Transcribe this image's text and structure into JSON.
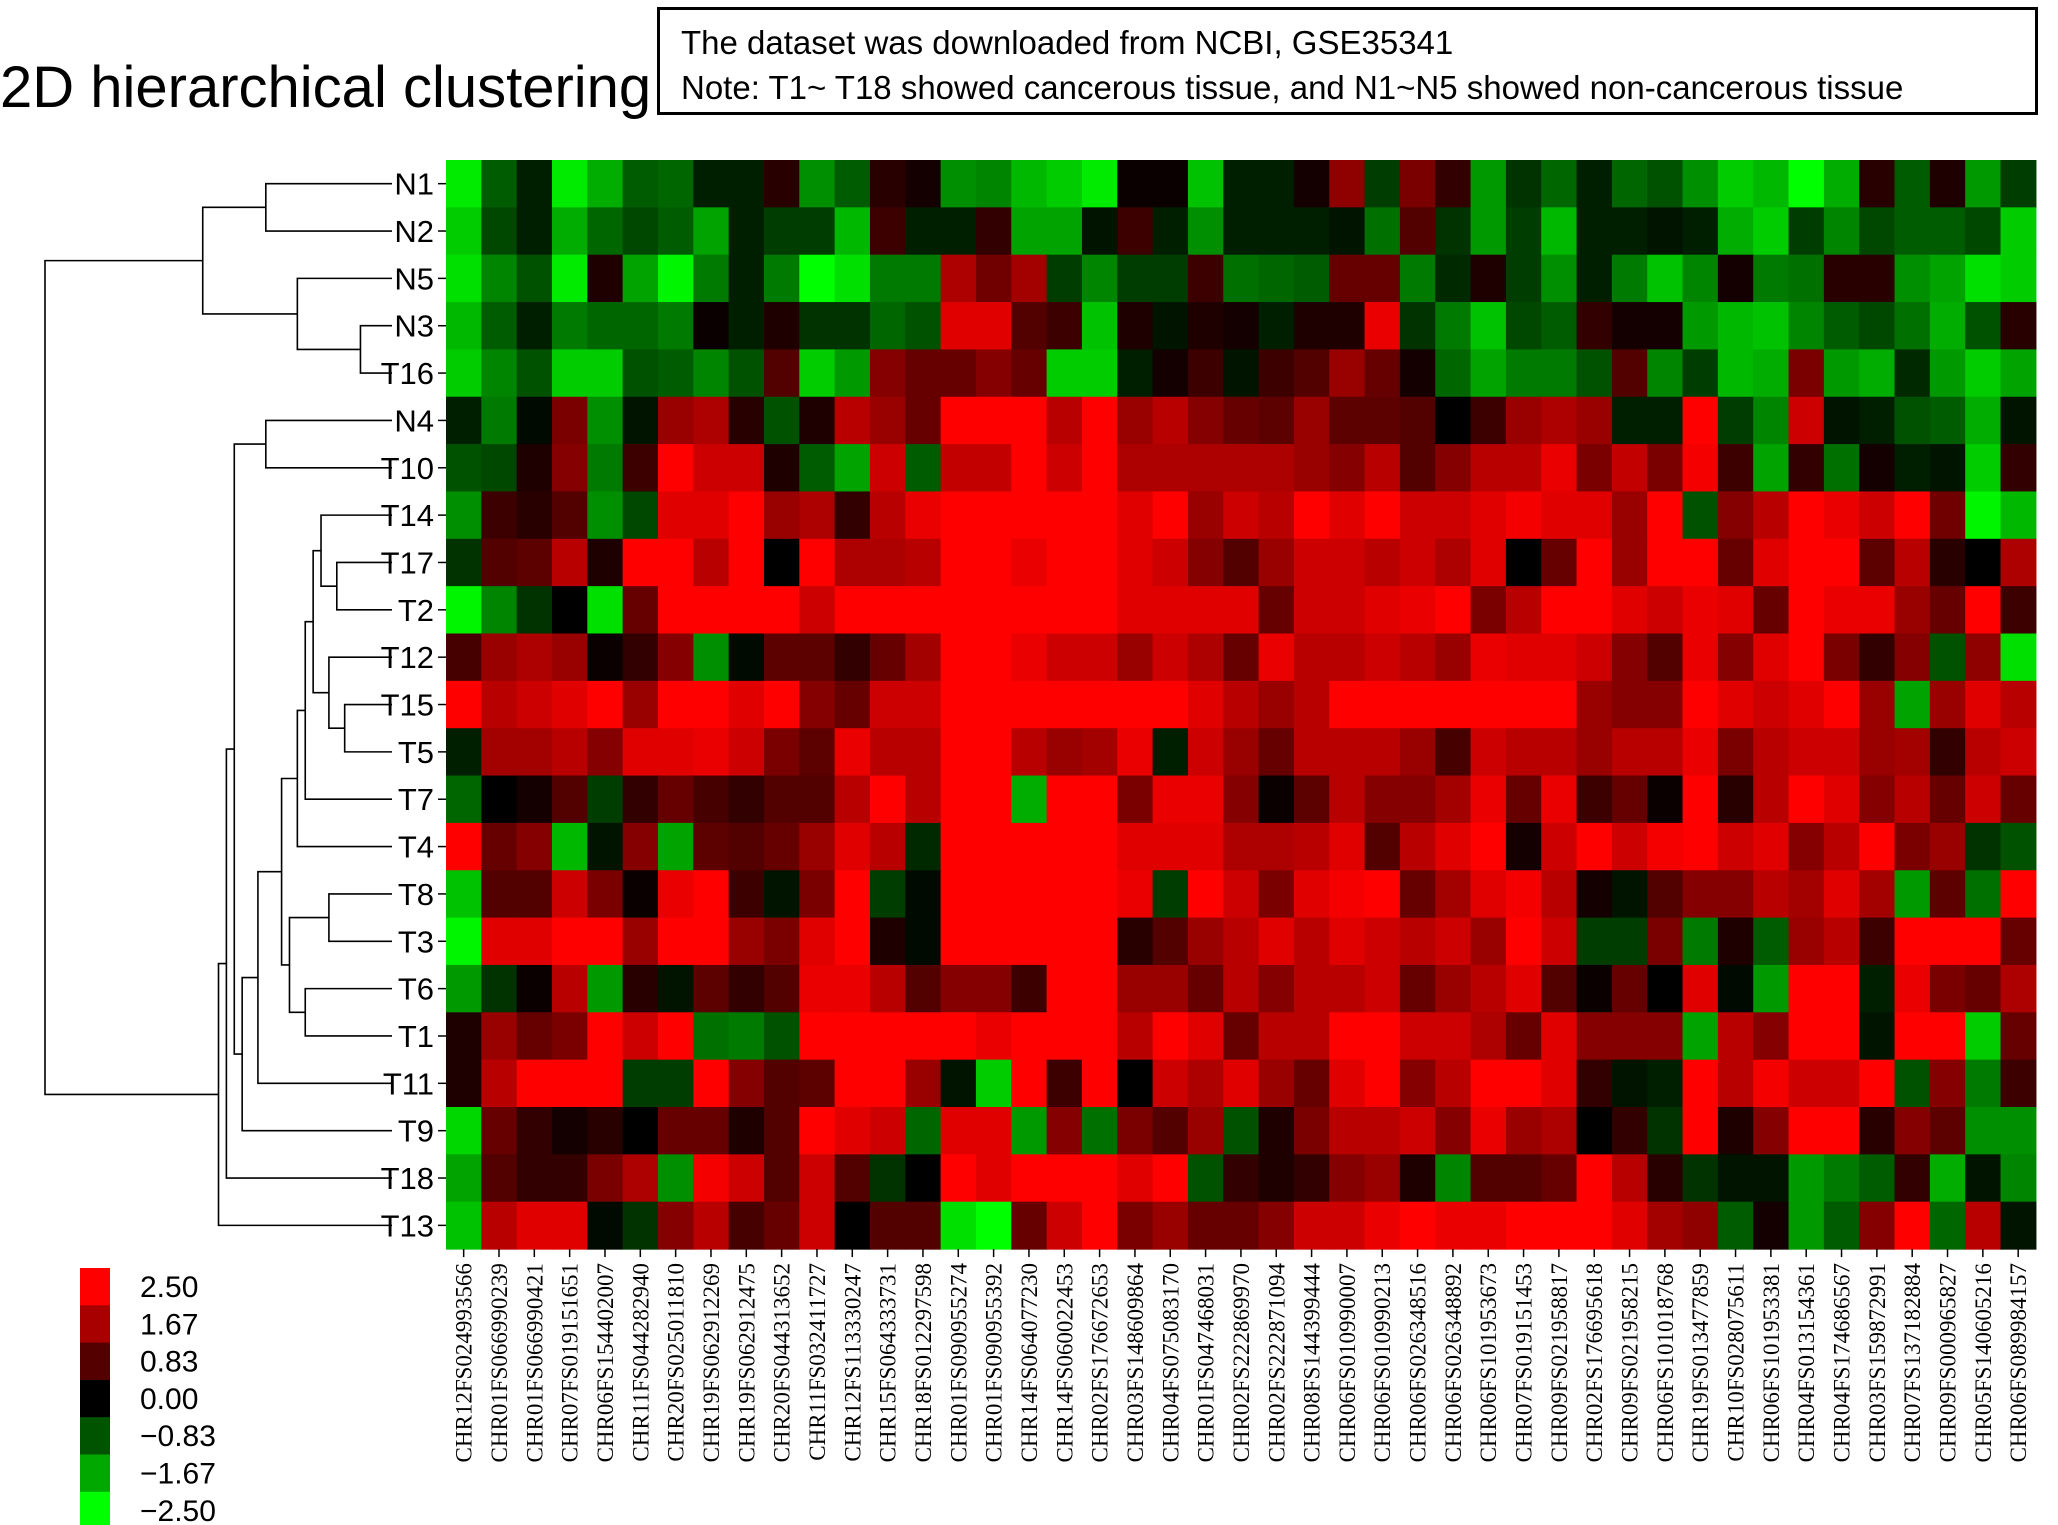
{
  "chart_data": {
    "type": "heatmap",
    "title": "2D hierarchical clustering",
    "note_lines": [
      "The dataset was downloaded from NCBI, GSE35341",
      "Note: T1~ T18 showed cancerous tissue, and N1~N5 showed non-cancerous tissue"
    ],
    "rows": [
      "N1",
      "N2",
      "N5",
      "N3",
      "T16",
      "N4",
      "T10",
      "T14",
      "T17",
      "T2",
      "T12",
      "T15",
      "T5",
      "T7",
      "T4",
      "T8",
      "T3",
      "T6",
      "T1",
      "T11",
      "T9",
      "T18",
      "T13"
    ],
    "columns": [
      "CHR12FS024993566",
      "CHR01FS066990239",
      "CHR01FS066990421",
      "CHR07FS019151651",
      "CHR06FS154402007",
      "CHR11FS044282940",
      "CHR20FS025011810",
      "CHR19FS062912269",
      "CHR19FS062912475",
      "CHR20FS044313652",
      "CHR11FS032411727",
      "CHR12FS113330247",
      "CHR15FS064333731",
      "CHR18FS012297598",
      "CHR01FS090955274",
      "CHR01FS090955392",
      "CHR14FS064077230",
      "CHR14FS060022453",
      "CHR02FS176672653",
      "CHR03FS148609864",
      "CHR04FS075083170",
      "CHR01FS047468031",
      "CHR02FS222869970",
      "CHR02FS222871094",
      "CHR08FS144399444",
      "CHR06FS010990007",
      "CHR06FS010990213",
      "CHR06FS026348516",
      "CHR06FS026348892",
      "CHR06FS101953673",
      "CHR07FS019151453",
      "CHR09FS021958817",
      "CHR02FS176695618",
      "CHR09FS021958215",
      "CHR06FS101018768",
      "CHR19FS013477859",
      "CHR10FS028075611",
      "CHR06FS101953381",
      "CHR04FS013154361",
      "CHR04FS174686567",
      "CHR03FS159872991",
      "CHR07FS137182884",
      "CHR09FS000965827",
      "CHR05FS140605216",
      "CHR06FS089984157"
    ],
    "values": [
      [
        -2.3,
        -0.9,
        -0.3,
        -2.3,
        -1.7,
        -0.9,
        -1.0,
        -0.3,
        -0.3,
        0.4,
        -1.4,
        -0.9,
        0.4,
        0.2,
        -1.4,
        -1.3,
        -1.8,
        -2.0,
        -2.3,
        0.1,
        0.1,
        -1.9,
        -0.3,
        -0.3,
        0.2,
        1.4,
        -0.6,
        1.2,
        0.5,
        -1.5,
        -0.5,
        -1.0,
        -0.3,
        -1.0,
        -0.8,
        -1.4,
        -2.0,
        -1.8,
        -2.5,
        -1.7,
        0.4,
        -0.9,
        0.3,
        -1.5,
        -0.6
      ],
      [
        -2.0,
        -0.7,
        -0.3,
        -1.7,
        -1.0,
        -0.7,
        -0.9,
        -1.6,
        -0.3,
        -0.6,
        -0.6,
        -1.8,
        0.6,
        -0.3,
        -0.3,
        0.5,
        -1.6,
        -1.6,
        -0.2,
        0.6,
        -0.3,
        -1.4,
        -0.3,
        -0.3,
        -0.3,
        -0.2,
        -1.1,
        0.8,
        -0.5,
        -1.5,
        -0.6,
        -1.8,
        -0.3,
        -0.3,
        -0.2,
        -0.3,
        -1.7,
        -2.0,
        -0.6,
        -1.3,
        -0.7,
        -0.9,
        -0.9,
        -0.7,
        -2.0
      ],
      [
        -2.2,
        -1.3,
        -0.8,
        -2.3,
        0.3,
        -1.6,
        -2.4,
        -1.2,
        -0.3,
        -1.2,
        -2.5,
        -2.2,
        -1.2,
        -1.2,
        1.7,
        1.1,
        1.6,
        -0.6,
        -1.3,
        -0.6,
        -0.6,
        0.6,
        -1.1,
        -1.0,
        -0.9,
        1.0,
        1.0,
        -1.2,
        -0.4,
        0.3,
        -0.6,
        -1.4,
        -0.3,
        -1.2,
        -1.9,
        -1.3,
        0.2,
        -1.2,
        -1.1,
        0.4,
        0.4,
        -1.4,
        -1.6,
        -2.2,
        -2.0
      ],
      [
        -1.8,
        -0.9,
        -0.3,
        -1.2,
        -1.0,
        -1.0,
        -1.2,
        0.1,
        -0.3,
        0.3,
        -0.5,
        -0.5,
        -1.0,
        -0.8,
        2.2,
        2.2,
        0.8,
        0.6,
        -1.9,
        0.3,
        -0.2,
        0.3,
        0.2,
        -0.3,
        0.3,
        0.3,
        2.3,
        -0.5,
        -1.2,
        -1.9,
        -0.7,
        -0.9,
        0.5,
        0.2,
        0.2,
        -1.5,
        -1.8,
        -1.9,
        -1.3,
        -0.9,
        -0.7,
        -1.1,
        -1.7,
        -0.8,
        0.4
      ],
      [
        -2.0,
        -1.3,
        -0.8,
        -2.0,
        -2.0,
        -0.8,
        -0.9,
        -1.3,
        -0.8,
        0.8,
        -2.0,
        -1.5,
        1.3,
        1.0,
        1.0,
        1.3,
        1.0,
        -2.0,
        -2.0,
        -0.3,
        0.2,
        0.6,
        -0.2,
        0.6,
        0.8,
        1.5,
        1.0,
        0.2,
        -1.0,
        -1.6,
        -1.2,
        -1.2,
        -0.8,
        0.8,
        -1.3,
        -0.6,
        -1.8,
        -1.7,
        1.2,
        -1.5,
        -1.7,
        -0.4,
        -1.5,
        -2.0,
        -1.6
      ],
      [
        -0.3,
        -1.2,
        -0.1,
        1.2,
        -1.4,
        -0.2,
        1.5,
        1.7,
        0.4,
        -0.8,
        0.3,
        1.8,
        1.5,
        1.0,
        2.5,
        2.5,
        2.5,
        1.8,
        2.5,
        1.5,
        1.8,
        1.3,
        1.0,
        0.9,
        1.5,
        0.9,
        0.9,
        0.8,
        0.0,
        0.6,
        1.5,
        1.7,
        1.5,
        -0.3,
        -0.3,
        2.5,
        -0.6,
        -1.3,
        2.0,
        -0.2,
        -0.3,
        -0.8,
        -0.9,
        -1.7,
        -0.2
      ],
      [
        -0.8,
        -0.7,
        0.3,
        1.3,
        -1.2,
        0.6,
        2.5,
        2.0,
        2.0,
        0.3,
        -0.9,
        -1.6,
        2.0,
        -0.9,
        1.9,
        1.9,
        2.5,
        2.0,
        2.5,
        1.7,
        1.7,
        1.7,
        1.7,
        1.7,
        1.5,
        1.3,
        1.8,
        0.8,
        1.3,
        1.8,
        1.8,
        2.3,
        1.2,
        1.9,
        1.2,
        2.4,
        0.6,
        -1.6,
        0.5,
        -1.1,
        0.2,
        -0.3,
        -0.2,
        -2.0,
        0.5
      ],
      [
        -1.4,
        0.6,
        0.4,
        0.8,
        -1.4,
        -0.7,
        2.2,
        2.2,
        2.5,
        1.5,
        1.7,
        0.5,
        1.8,
        2.3,
        2.5,
        2.5,
        2.5,
        2.5,
        2.5,
        2.2,
        2.5,
        1.5,
        2.0,
        1.8,
        2.5,
        2.2,
        2.5,
        2.0,
        2.0,
        2.2,
        2.4,
        2.2,
        2.2,
        1.5,
        2.5,
        -0.8,
        1.3,
        1.8,
        2.5,
        2.3,
        2.0,
        2.5,
        1.1,
        -2.4,
        -1.8
      ],
      [
        -0.5,
        0.8,
        0.9,
        1.8,
        0.3,
        2.5,
        2.5,
        1.8,
        2.5,
        0.0,
        2.5,
        1.7,
        1.7,
        1.8,
        2.5,
        2.5,
        2.3,
        2.5,
        2.5,
        2.2,
        2.0,
        1.3,
        0.8,
        1.5,
        2.0,
        2.0,
        1.8,
        2.0,
        1.7,
        2.2,
        0.0,
        1.0,
        2.5,
        1.5,
        2.5,
        2.5,
        1.0,
        2.2,
        2.5,
        2.5,
        0.9,
        1.8,
        0.4,
        0.0,
        1.7
      ],
      [
        -2.4,
        -1.3,
        -0.5,
        0.0,
        -2.2,
        1.0,
        2.5,
        2.5,
        2.5,
        2.5,
        2.0,
        2.5,
        2.5,
        2.5,
        2.5,
        2.5,
        2.5,
        2.5,
        2.5,
        2.2,
        2.2,
        2.2,
        2.2,
        1.0,
        2.0,
        2.0,
        2.2,
        2.3,
        2.5,
        1.2,
        1.8,
        2.5,
        2.5,
        2.2,
        2.0,
        2.3,
        2.2,
        1.0,
        2.5,
        2.3,
        2.3,
        1.5,
        1.0,
        2.5,
        0.6
      ],
      [
        0.7,
        1.5,
        1.7,
        1.5,
        0.1,
        0.5,
        1.3,
        -1.4,
        -0.1,
        0.9,
        0.9,
        0.5,
        1.0,
        1.6,
        2.5,
        2.5,
        2.3,
        2.0,
        2.0,
        1.5,
        2.0,
        1.7,
        1.0,
        2.3,
        1.8,
        1.8,
        2.0,
        1.8,
        1.5,
        2.3,
        2.2,
        2.2,
        2.0,
        1.3,
        0.8,
        2.3,
        1.3,
        2.2,
        2.5,
        1.2,
        0.5,
        1.3,
        -0.8,
        1.4,
        -2.2
      ],
      [
        2.5,
        1.8,
        2.0,
        2.2,
        2.5,
        1.5,
        2.5,
        2.5,
        2.2,
        2.5,
        1.3,
        1.0,
        2.0,
        2.0,
        2.5,
        2.5,
        2.5,
        2.5,
        2.5,
        2.5,
        2.5,
        2.2,
        1.8,
        1.5,
        1.8,
        2.5,
        2.5,
        2.5,
        2.5,
        2.5,
        2.5,
        2.5,
        1.5,
        1.3,
        1.3,
        2.5,
        2.2,
        2.0,
        2.2,
        2.5,
        1.5,
        -1.6,
        1.5,
        2.2,
        1.8
      ],
      [
        -0.3,
        1.6,
        1.6,
        1.8,
        1.3,
        2.2,
        2.2,
        2.3,
        2.0,
        1.2,
        0.9,
        2.3,
        1.8,
        1.8,
        2.5,
        2.5,
        1.8,
        1.5,
        1.6,
        2.3,
        -0.3,
        2.0,
        1.5,
        1.0,
        1.8,
        1.8,
        1.8,
        1.5,
        0.7,
        2.0,
        1.8,
        1.8,
        1.5,
        1.8,
        1.8,
        2.3,
        1.2,
        1.8,
        2.0,
        2.0,
        1.5,
        1.6,
        0.5,
        1.8,
        2.0
      ],
      [
        -1.0,
        0.0,
        0.2,
        0.8,
        -0.6,
        0.5,
        1.0,
        0.7,
        0.5,
        0.8,
        0.8,
        1.8,
        2.5,
        1.8,
        2.5,
        2.5,
        -1.7,
        2.5,
        2.5,
        1.2,
        2.3,
        2.3,
        1.3,
        0.1,
        0.9,
        1.8,
        1.3,
        1.3,
        1.6,
        2.3,
        1.0,
        2.3,
        0.6,
        1.0,
        0.1,
        2.5,
        0.4,
        1.8,
        2.5,
        2.2,
        1.3,
        1.8,
        1.0,
        2.0,
        1.0
      ],
      [
        2.5,
        1.0,
        1.3,
        -1.8,
        -0.2,
        1.3,
        -1.6,
        0.9,
        0.8,
        1.0,
        1.5,
        2.2,
        1.8,
        -0.4,
        2.5,
        2.5,
        2.5,
        2.5,
        2.5,
        2.2,
        2.2,
        2.2,
        1.7,
        1.7,
        1.8,
        2.2,
        0.8,
        1.8,
        2.2,
        2.5,
        0.2,
        2.0,
        2.5,
        2.0,
        2.4,
        2.5,
        2.0,
        2.2,
        1.3,
        1.8,
        2.5,
        1.2,
        1.5,
        -0.5,
        -0.8
      ],
      [
        -1.9,
        0.8,
        0.8,
        2.0,
        1.2,
        0.1,
        2.3,
        2.5,
        0.6,
        -0.2,
        1.2,
        2.5,
        -0.6,
        -0.1,
        2.5,
        2.5,
        2.5,
        2.5,
        2.5,
        2.3,
        -0.6,
        2.5,
        2.0,
        1.2,
        2.2,
        2.4,
        2.5,
        1.0,
        1.6,
        2.2,
        2.4,
        1.8,
        0.2,
        -0.2,
        0.8,
        1.3,
        1.3,
        1.8,
        1.6,
        2.2,
        1.6,
        -1.5,
        0.9,
        -1.1,
        2.5
      ],
      [
        -2.4,
        2.2,
        2.2,
        2.5,
        2.5,
        1.5,
        2.5,
        2.5,
        1.5,
        1.2,
        2.2,
        2.5,
        0.3,
        -0.1,
        2.5,
        2.5,
        2.5,
        2.5,
        2.5,
        0.4,
        0.8,
        1.5,
        1.8,
        2.2,
        1.8,
        2.2,
        2.0,
        1.8,
        2.0,
        1.5,
        2.5,
        2.0,
        -0.6,
        -0.6,
        1.2,
        -1.2,
        0.3,
        -0.9,
        1.5,
        1.8,
        0.6,
        2.5,
        2.5,
        2.5,
        1.0
      ],
      [
        -1.5,
        -0.5,
        0.1,
        1.8,
        -1.5,
        0.4,
        -0.2,
        0.9,
        0.5,
        0.8,
        2.3,
        2.3,
        1.8,
        0.8,
        1.3,
        1.3,
        0.6,
        2.5,
        2.5,
        1.5,
        1.5,
        1.0,
        1.8,
        1.3,
        1.8,
        1.8,
        2.0,
        1.0,
        1.5,
        1.8,
        2.2,
        0.8,
        0.1,
        1.0,
        0.0,
        2.2,
        -0.1,
        -1.5,
        2.5,
        2.5,
        -0.3,
        2.3,
        1.2,
        1.0,
        1.7
      ],
      [
        0.3,
        1.5,
        1.0,
        1.2,
        2.5,
        2.0,
        2.5,
        -1.1,
        -1.2,
        -0.8,
        2.5,
        2.5,
        2.5,
        2.5,
        2.5,
        2.3,
        2.5,
        2.5,
        2.5,
        1.8,
        2.5,
        2.2,
        1.0,
        1.8,
        1.8,
        2.5,
        2.5,
        2.0,
        2.0,
        1.7,
        1.0,
        2.2,
        1.3,
        1.3,
        1.3,
        -1.6,
        1.8,
        1.3,
        2.5,
        2.5,
        -0.2,
        2.5,
        2.5,
        -2.0,
        1.0
      ],
      [
        0.3,
        1.8,
        2.5,
        2.5,
        2.5,
        -0.6,
        -0.6,
        2.5,
        1.3,
        0.8,
        0.9,
        2.5,
        2.5,
        1.5,
        -0.2,
        -2.0,
        2.5,
        0.6,
        2.5,
        0.0,
        2.0,
        1.7,
        2.2,
        1.5,
        1.0,
        2.2,
        2.5,
        1.3,
        1.8,
        2.5,
        2.5,
        2.2,
        0.5,
        -0.2,
        -0.3,
        2.5,
        1.8,
        2.4,
        2.0,
        2.0,
        2.5,
        -0.8,
        1.3,
        -1.2,
        0.6
      ],
      [
        -2.1,
        1.0,
        0.5,
        0.2,
        0.4,
        0.0,
        1.0,
        1.0,
        0.3,
        0.8,
        2.5,
        2.2,
        2.0,
        -1.0,
        2.2,
        2.2,
        -1.5,
        1.3,
        -1.1,
        1.2,
        0.8,
        1.5,
        -0.8,
        0.3,
        1.2,
        1.8,
        1.8,
        2.0,
        1.3,
        2.3,
        1.5,
        1.7,
        0.0,
        0.5,
        -0.5,
        2.5,
        0.3,
        1.3,
        2.5,
        2.5,
        0.4,
        1.3,
        0.9,
        -1.4,
        -1.4
      ],
      [
        -1.6,
        0.8,
        0.5,
        0.5,
        1.2,
        1.7,
        -1.4,
        2.4,
        2.0,
        0.8,
        2.0,
        0.8,
        -0.5,
        0.0,
        2.5,
        2.2,
        2.5,
        2.5,
        2.5,
        2.2,
        2.5,
        -0.8,
        0.5,
        0.3,
        0.5,
        1.3,
        1.5,
        0.3,
        -1.3,
        0.8,
        0.8,
        1.0,
        2.5,
        1.8,
        0.4,
        -0.5,
        -0.2,
        -0.2,
        -1.5,
        -1.2,
        -0.9,
        0.5,
        -1.7,
        -0.2,
        -1.3
      ],
      [
        -1.9,
        1.8,
        2.2,
        2.2,
        -0.1,
        -0.5,
        1.3,
        1.8,
        0.7,
        1.0,
        2.0,
        0.0,
        0.8,
        0.8,
        -2.2,
        -2.5,
        1.0,
        2.0,
        2.5,
        1.2,
        1.5,
        1.0,
        1.0,
        1.3,
        2.0,
        2.0,
        2.3,
        2.5,
        2.3,
        2.3,
        2.5,
        2.5,
        2.5,
        2.2,
        1.6,
        1.4,
        -0.9,
        0.2,
        -1.5,
        -0.9,
        1.3,
        2.5,
        -1.0,
        1.8,
        -0.2
      ]
    ],
    "scale": {
      "min": -2.5,
      "max": 2.5,
      "low_color": "#00ff00",
      "mid_color": "#000000",
      "high_color": "#ff0000"
    },
    "legend_ticks": [
      "2.50",
      "1.67",
      "0.83",
      "0.00",
      "−0.83",
      "−1.67",
      "−2.50"
    ],
    "legend_colors": [
      "#ff0000",
      "#a80000",
      "#540000",
      "#000000",
      "#005400",
      "#00a800",
      "#00ff00"
    ],
    "row_dendrogram": {
      "nodes": [
        {
          "a": "N1",
          "b": "N2",
          "h": 0.08
        },
        {
          "a": "N3",
          "b": "T16",
          "h": 0.02
        },
        {
          "a": "N5",
          "b": 1,
          "h": 0.06
        },
        {
          "a": 0,
          "b": 2,
          "h": 0.12
        },
        {
          "a": "N4",
          "b": "T10",
          "h": 0.08
        },
        {
          "a": "T17",
          "b": "T2",
          "h": 0.035
        },
        {
          "a": "T14",
          "b": 5,
          "h": 0.045
        },
        {
          "a": "T15",
          "b": "T5",
          "h": 0.03
        },
        {
          "a": "T12",
          "b": 7,
          "h": 0.04
        },
        {
          "a": 6,
          "b": 8,
          "h": 0.05
        },
        {
          "a": 9,
          "b": "T7",
          "h": 0.055
        },
        {
          "a": 10,
          "b": "T4",
          "h": 0.06
        },
        {
          "a": "T8",
          "b": "T3",
          "h": 0.04
        },
        {
          "a": "T6",
          "b": "T1",
          "h": 0.055
        },
        {
          "a": 12,
          "b": 13,
          "h": 0.065
        },
        {
          "a": 11,
          "b": 14,
          "h": 0.07
        },
        {
          "a": 15,
          "b": "T11",
          "h": 0.085
        },
        {
          "a": 16,
          "b": "T9",
          "h": 0.095
        },
        {
          "a": 4,
          "b": 17,
          "h": 0.1
        },
        {
          "a": 18,
          "b": "T18",
          "h": 0.105
        },
        {
          "a": 19,
          "b": "T13",
          "h": 0.11
        },
        {
          "a": 3,
          "b": 20,
          "h": 0.22
        }
      ]
    }
  }
}
